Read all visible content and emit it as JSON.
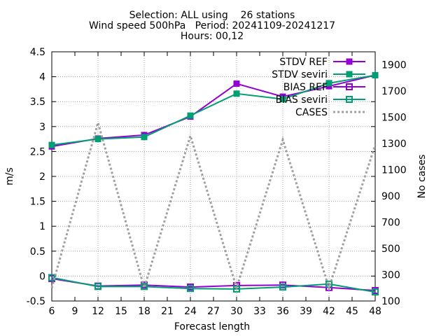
{
  "chart_data": {
    "type": "line",
    "title_lines": [
      "Selection: ALL using    26 stations",
      "Wind speed 500hPa   Period: 20241109-20241217",
      "Hours: 00,12"
    ],
    "xlabel": "Forecast length",
    "ylabel": "m/s",
    "y2label": "No cases",
    "x": [
      6,
      12,
      18,
      24,
      30,
      36,
      42,
      48
    ],
    "x_ticks": [
      "6",
      "9",
      "12",
      "15",
      "18",
      "21",
      "24",
      "27",
      "30",
      "33",
      "36",
      "39",
      "42",
      "45",
      "48"
    ],
    "xlim": [
      6,
      48
    ],
    "ylim": [
      -0.5,
      4.5
    ],
    "y_ticks": [
      "-0.5",
      "0",
      "0.5",
      "1",
      "1.5",
      "2",
      "2.5",
      "3",
      "3.5",
      "4",
      "4.5"
    ],
    "y2lim": [
      100,
      2000
    ],
    "y2_ticks": [
      "100",
      "300",
      "500",
      "700",
      "900",
      "1100",
      "1300",
      "1500",
      "1700",
      "1900"
    ],
    "grid": true,
    "legend_position": "top-right",
    "series": [
      {
        "name": "STDV REF",
        "axis": "y",
        "color": "#9400d3",
        "marker": "filled-square",
        "style": "solid",
        "values": [
          2.6,
          2.76,
          2.83,
          3.2,
          3.86,
          3.6,
          3.81,
          4.03
        ]
      },
      {
        "name": "STDV seviri",
        "axis": "y",
        "color": "#009e73",
        "marker": "filled-square",
        "style": "solid",
        "values": [
          2.63,
          2.75,
          2.79,
          3.22,
          3.66,
          3.55,
          3.87,
          4.03
        ]
      },
      {
        "name": "BIAS REF",
        "axis": "y",
        "color": "#9400d3",
        "marker": "open-square",
        "style": "solid",
        "values": [
          -0.05,
          -0.2,
          -0.18,
          -0.22,
          -0.19,
          -0.18,
          -0.23,
          -0.29
        ]
      },
      {
        "name": "BIAS seviri",
        "axis": "y",
        "color": "#009e73",
        "marker": "open-square",
        "style": "solid",
        "values": [
          -0.03,
          -0.21,
          -0.21,
          -0.25,
          -0.26,
          -0.22,
          -0.16,
          -0.32
        ]
      },
      {
        "name": "CASES",
        "axis": "y2",
        "color": "#a0a0a0",
        "marker": "none",
        "style": "dotted",
        "values": [
          200,
          1460,
          200,
          1360,
          200,
          1330,
          200,
          1290
        ]
      }
    ]
  }
}
